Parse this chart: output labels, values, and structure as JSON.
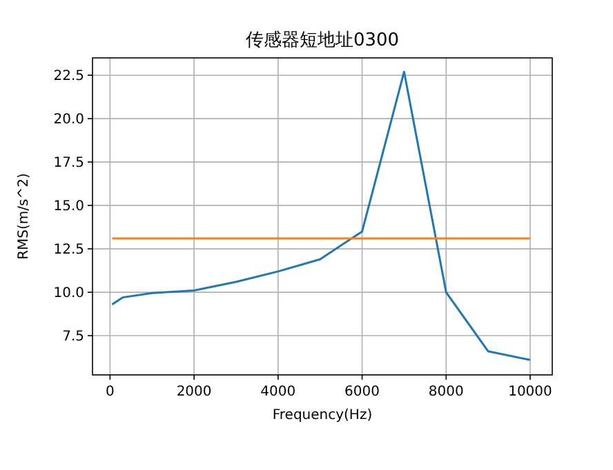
{
  "chart_data": {
    "type": "line",
    "title": "传感器短地址0300",
    "xlabel": "Frequency(Hz)",
    "ylabel": "RMS(m/s^2)",
    "xlim": [
      -417,
      10526
    ],
    "ylim": [
      5.24,
      23.5
    ],
    "xticks": [
      0,
      2000,
      4000,
      6000,
      8000,
      10000
    ],
    "yticks": [
      {
        "value": 7.5,
        "label": "7.5"
      },
      {
        "value": 10,
        "label": "10.0"
      },
      {
        "value": 12.5,
        "label": "12.5"
      },
      {
        "value": 15,
        "label": "15.0"
      },
      {
        "value": 17.5,
        "label": "17.5"
      },
      {
        "value": 20,
        "label": "20.0"
      },
      {
        "value": 22.5,
        "label": "22.5"
      }
    ],
    "grid": true,
    "series": [
      {
        "color": "#1f77b4",
        "x": [
          50,
          300,
          1000,
          2000,
          3000,
          4000,
          5000,
          6000,
          7000,
          8000,
          9000,
          10000
        ],
        "values": [
          9.3,
          9.7,
          9.95,
          10.1,
          10.6,
          11.2,
          11.9,
          13.5,
          22.7,
          10.0,
          6.6,
          6.1
        ]
      },
      {
        "color": "#ff7f0e",
        "x": [
          50,
          10000
        ],
        "values": [
          13.1,
          13.1
        ]
      }
    ]
  }
}
